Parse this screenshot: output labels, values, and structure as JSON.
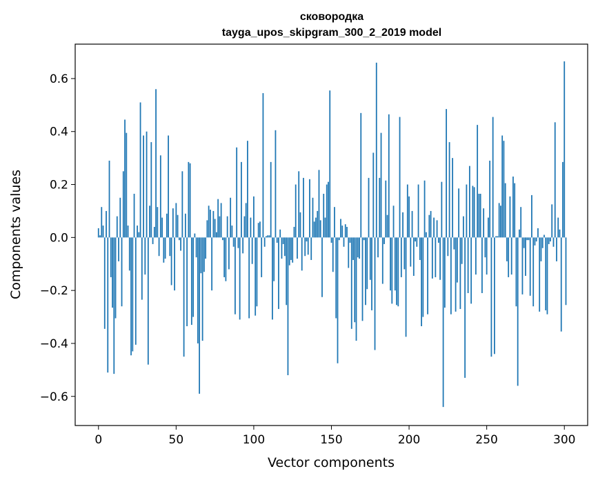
{
  "chart_data": {
    "type": "bar",
    "title": "сковородка",
    "subtitle": "tayga_upos_skipgram_300_2_2019 model",
    "xlabel": "Vector components",
    "ylabel": "Components values",
    "xlim": [
      -15,
      315
    ],
    "ylim": [
      -0.71,
      0.73
    ],
    "xticks": [
      0,
      50,
      100,
      150,
      200,
      250,
      300
    ],
    "xtick_labels": [
      "0",
      "50",
      "100",
      "150",
      "200",
      "250",
      "300"
    ],
    "yticks": [
      -0.6,
      -0.4,
      -0.2,
      0.0,
      0.2,
      0.4,
      0.6
    ],
    "ytick_labels": [
      "−0.6",
      "−0.4",
      "−0.2",
      "0.0",
      "0.2",
      "0.4",
      "0.6"
    ],
    "bar_color": "#1f77b4",
    "values": [
      0.035,
      0.008,
      0.115,
      0.045,
      -0.345,
      0.1,
      -0.51,
      0.29,
      -0.15,
      -0.265,
      -0.515,
      -0.305,
      0.08,
      -0.09,
      0.15,
      -0.26,
      0.25,
      0.445,
      0.395,
      0.045,
      -0.125,
      -0.445,
      -0.43,
      0.165,
      -0.405,
      0.045,
      0.02,
      0.51,
      -0.235,
      0.385,
      -0.14,
      0.4,
      -0.48,
      0.12,
      0.36,
      -0.025,
      0.04,
      0.56,
      0.115,
      -0.07,
      0.31,
      0.075,
      -0.095,
      -0.08,
      0.09,
      0.385,
      -0.07,
      -0.18,
      0.11,
      -0.2,
      0.13,
      0.085,
      -0.01,
      -0.05,
      0.25,
      -0.45,
      0.09,
      -0.335,
      0.285,
      0.28,
      -0.33,
      -0.3,
      0.015,
      -0.075,
      -0.4,
      -0.59,
      -0.135,
      -0.39,
      -0.13,
      -0.08,
      0.065,
      0.12,
      0.105,
      -0.2,
      0.1,
      0.07,
      0.02,
      0.145,
      0.08,
      0.13,
      -0.01,
      -0.15,
      -0.165,
      0.08,
      -0.12,
      0.15,
      0.045,
      -0.035,
      -0.29,
      0.34,
      -0.04,
      -0.31,
      0.285,
      -0.06,
      0.08,
      0.13,
      0.365,
      -0.305,
      0.075,
      -0.1,
      0.155,
      -0.295,
      -0.26,
      0.055,
      0.06,
      -0.15,
      0.545,
      -0.035,
      0.005,
      0.008,
      0.008,
      0.285,
      -0.31,
      -0.165,
      0.405,
      -0.02,
      -0.27,
      0.03,
      -0.08,
      -0.025,
      -0.07,
      -0.255,
      -0.52,
      -0.105,
      -0.085,
      -0.095,
      0.04,
      0.2,
      -0.08,
      0.25,
      0.095,
      -0.125,
      0.225,
      -0.07,
      -0.015,
      -0.065,
      0.22,
      -0.085,
      0.15,
      0.06,
      0.075,
      0.1,
      0.255,
      0.065,
      -0.225,
      0.165,
      0.075,
      0.2,
      0.21,
      0.555,
      -0.02,
      -0.13,
      0.115,
      -0.305,
      -0.475,
      -0.01,
      0.07,
      0.045,
      -0.035,
      0.05,
      0.04,
      -0.115,
      -0.02,
      -0.345,
      -0.085,
      -0.32,
      -0.39,
      -0.075,
      -0.08,
      0.47,
      -0.315,
      -0.01,
      -0.255,
      -0.195,
      0.225,
      -0.16,
      -0.275,
      0.32,
      -0.425,
      0.66,
      -0.075,
      0.225,
      0.395,
      -0.175,
      -0.025,
      0.215,
      0.085,
      0.465,
      -0.2,
      -0.25,
      0.12,
      -0.2,
      -0.255,
      -0.26,
      0.455,
      -0.15,
      0.095,
      -0.12,
      -0.375,
      0.2,
      0.155,
      -0.11,
      0.1,
      -0.145,
      -0.015,
      -0.035,
      0.2,
      -0.085,
      -0.335,
      -0.3,
      0.215,
      0.02,
      -0.29,
      0.085,
      0.1,
      -0.155,
      0.075,
      -0.15,
      0.065,
      -0.02,
      -0.16,
      0.21,
      -0.64,
      -0.265,
      0.485,
      -0.07,
      0.36,
      -0.29,
      0.3,
      -0.045,
      -0.28,
      -0.17,
      0.185,
      -0.27,
      -0.1,
      0.08,
      -0.53,
      0.2,
      -0.21,
      0.27,
      -0.25,
      0.195,
      0.19,
      -0.14,
      0.425,
      0.165,
      0.165,
      -0.21,
      0.11,
      -0.075,
      -0.14,
      0.075,
      0.29,
      -0.45,
      0.455,
      -0.44,
      0.005,
      0.005,
      0.13,
      0.12,
      0.385,
      0.365,
      0.205,
      -0.09,
      -0.15,
      0.155,
      -0.14,
      0.23,
      0.205,
      -0.26,
      -0.56,
      0.03,
      0.115,
      -0.215,
      -0.04,
      -0.145,
      -0.01,
      -0.01,
      -0.22,
      0.16,
      -0.26,
      -0.03,
      -0.015,
      0.035,
      -0.28,
      -0.09,
      -0.04,
      0.01,
      -0.275,
      -0.29,
      -0.025,
      -0.015,
      0.125,
      -0.035,
      0.435,
      -0.09,
      0.075,
      0.03,
      -0.355,
      0.285,
      0.665,
      -0.255
    ]
  }
}
